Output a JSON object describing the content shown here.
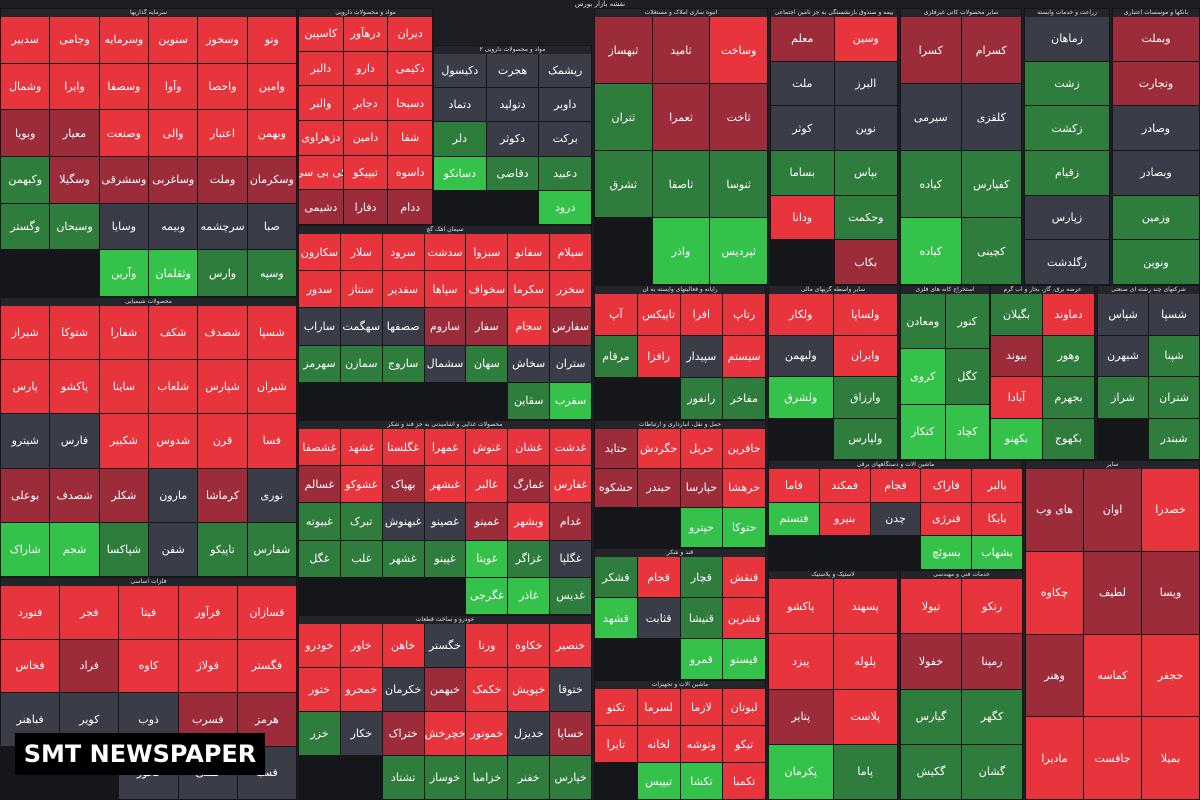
{
  "header": {
    "title": "نقشه بازار بورس"
  },
  "watermark": "SMT NEWSPAPER",
  "sectors": [
    {
      "name": "سرمایه گذاریها",
      "tiles": [
        "وتو",
        "وسخوز",
        "سنوین",
        "وسرمایه",
        "وجامی",
        "سدبیر",
        "وامین",
        "واحصا",
        "وآوا",
        "وسصفا",
        "وایرا",
        "وشمال",
        "وبهمن",
        "اعتبار",
        "والی",
        "وصنعت",
        "معیار",
        "وبویا",
        "وسکرمان",
        "وملت",
        "وساغربی",
        "وسشرقی",
        "وسگیلا",
        "وکبهمن",
        "صبا",
        "سرچشمه",
        "وبیمه",
        "وسایا",
        "وسبحان",
        "وگستر",
        "وسپه",
        "وارس",
        "وثقلمان",
        "وآرین"
      ],
      "colors": [
        "#e8343c",
        "#e8343c",
        "#e8343c",
        "#e8343c",
        "#e8343c",
        "#e8343c",
        "#e8343c",
        "#e8343c",
        "#e8343c",
        "#e8343c",
        "#e8343c",
        "#e8343c",
        "#e8343c",
        "#e8343c",
        "#e8343c",
        "#e8343c",
        "#9c2c3a",
        "#9c2c3a",
        "#9c2c3a",
        "#9c2c3a",
        "#9c2c3a",
        "#9c2c3a",
        "#9c2c3a",
        "#2f7d3c",
        "#3a3d48",
        "#3a3d48",
        "#3a3d48",
        "#3a3d48",
        "#2f7d3c",
        "#2f7d3c",
        "#2f7d3c",
        "#2f7d3c",
        "#35c24a",
        "#35c24a"
      ]
    },
    {
      "name": "مواد و محصولات دارویی",
      "tiles": [
        "دیران",
        "درهآور",
        "کاسپین",
        "دکیمی",
        "دارو",
        "دالبر",
        "دسبحا",
        "دجابر",
        "والبر",
        "شفا",
        "دامین",
        "دزهراوی",
        "داسوه",
        "تیپیکو",
        "کی بی سی",
        "ددام",
        "دفارا",
        "دشیمی"
      ],
      "colors": [
        "#e8343c",
        "#e8343c",
        "#e8343c",
        "#e8343c",
        "#e8343c",
        "#e8343c",
        "#e8343c",
        "#e8343c",
        "#e8343c",
        "#e8343c",
        "#e8343c",
        "#e8343c",
        "#e8343c",
        "#e8343c",
        "#e8343c",
        "#9c2c3a",
        "#9c2c3a",
        "#9c2c3a"
      ]
    },
    {
      "name": "مواد و محصولات دارویی ۲",
      "tiles": [
        "ریشمک",
        "هجرت",
        "دکیسول",
        "داوبر",
        "دتوليد",
        "دتماد",
        "برکت",
        "دکوثر",
        "دلر",
        "دعبید",
        "دقاضی",
        "دسانکو",
        "درود"
      ],
      "colors": [
        "#3a3d48",
        "#3a3d48",
        "#3a3d48",
        "#3a3d48",
        "#3a3d48",
        "#3a3d48",
        "#3a3d48",
        "#3a3d48",
        "#2f7d3c",
        "#2f7d3c",
        "#2f7d3c",
        "#35c24a",
        "#35c24a"
      ]
    },
    {
      "name": "محصولات شیمیایی",
      "tiles": [
        "شسپا",
        "شصدف",
        "شکف",
        "شفارا",
        "شتوکا",
        "شیراز",
        "شیران",
        "شپارس",
        "شلعاب",
        "ساینا",
        "پاکشو",
        "پارس",
        "فسا",
        "قرن",
        "شدوس",
        "شکبیر",
        "فارس",
        "شیترو",
        "نوری",
        "کرماشا",
        "مارون",
        "شکلر",
        "شصدف",
        "بوعلی",
        "شفارس",
        "تاپیکو",
        "شفن",
        "شپاکسا",
        "شجم",
        "شاراک"
      ],
      "colors": [
        "#e8343c",
        "#e8343c",
        "#e8343c",
        "#e8343c",
        "#e8343c",
        "#e8343c",
        "#e8343c",
        "#e8343c",
        "#e8343c",
        "#e8343c",
        "#e8343c",
        "#e8343c",
        "#e8343c",
        "#e8343c",
        "#e8343c",
        "#e8343c",
        "#3a3d48",
        "#3a3d48",
        "#3a3d48",
        "#9c2c3a",
        "#3a3d48",
        "#9c2c3a",
        "#9c2c3a",
        "#9c2c3a",
        "#2f7d3c",
        "#2f7d3c",
        "#3a3d48",
        "#2f7d3c",
        "#35c24a",
        "#35c24a"
      ]
    },
    {
      "name": "فلزات اساسی",
      "tiles": [
        "فسازان",
        "فرآور",
        "فیتا",
        "فجر",
        "فنورد",
        "فگستر",
        "فولاژ",
        "کاوه",
        "فراد",
        "فخاس",
        "هرمز",
        "فسرب",
        "ذوب",
        "کویر",
        "فباهنر",
        "فسبا",
        "فملی",
        "فخوز"
      ],
      "colors": [
        "#e8343c",
        "#e8343c",
        "#e8343c",
        "#e8343c",
        "#e8343c",
        "#e8343c",
        "#e8343c",
        "#e8343c",
        "#9c2c3a",
        "#e8343c",
        "#9c2c3a",
        "#9c2c3a",
        "#3a3d48",
        "#3a3d48",
        "#3a3d48",
        "#3a3d48",
        "#3a3d48",
        "#3a3d48"
      ]
    },
    {
      "name": "سیمان آهک گچ",
      "tiles": [
        "سیلام",
        "سفانو",
        "سبزوا",
        "سدشت",
        "سرود",
        "سلار",
        "سکارون",
        "سخزر",
        "سکرما",
        "سخواف",
        "سپاها",
        "سفدیر",
        "سنتاز",
        "سدور",
        "سفارس",
        "سجام",
        "سفار",
        "ساروم",
        "صصفها",
        "سهگمت",
        "ساراب",
        "ستران",
        "سخاش",
        "سهان",
        "سشمال",
        "ساروج",
        "سمازن",
        "سهرمز",
        "سفرب",
        "سقاین"
      ],
      "colors": [
        "#e8343c",
        "#e8343c",
        "#e8343c",
        "#e8343c",
        "#e8343c",
        "#e8343c",
        "#e8343c",
        "#e8343c",
        "#e8343c",
        "#e8343c",
        "#e8343c",
        "#e8343c",
        "#e8343c",
        "#e8343c",
        "#9c2c3a",
        "#e8343c",
        "#9c2c3a",
        "#9c2c3a",
        "#3a3d48",
        "#3a3d48",
        "#3a3d48",
        "#3a3d48",
        "#3a3d48",
        "#2f7d3c",
        "#3a3d48",
        "#2f7d3c",
        "#2f7d3c",
        "#2f7d3c",
        "#35c24a",
        "#2f7d3c"
      ]
    },
    {
      "name": "محصولات غذایی و آشامیدنی به جز قند و شکر",
      "tiles": [
        "غدشت",
        "غشان",
        "غنوش",
        "غمهرا",
        "غگلستا",
        "غشهد",
        "غشصفا",
        "غفارس",
        "غمارگ",
        "غالبر",
        "غبشهر",
        "بهپاک",
        "غشوکو",
        "غسالم",
        "غدام",
        "وبشهر",
        "غمینو",
        "غصینو",
        "غبهنوش",
        "تبرک",
        "غبیوته",
        "غگلپا",
        "غزاگر",
        "غویتا",
        "غپینو",
        "غشهر",
        "غلب",
        "غگل",
        "غدیس",
        "غاذر",
        "غگرجی"
      ],
      "colors": [
        "#e8343c",
        "#e8343c",
        "#e8343c",
        "#e8343c",
        "#e8343c",
        "#e8343c",
        "#e8343c",
        "#e8343c",
        "#9c2c3a",
        "#e8343c",
        "#e8343c",
        "#9c2c3a",
        "#e8343c",
        "#9c2c3a",
        "#9c2c3a",
        "#e8343c",
        "#9c2c3a",
        "#3a3d48",
        "#3a3d48",
        "#2f7d3c",
        "#2f7d3c",
        "#3a3d48",
        "#2f7d3c",
        "#35c24a",
        "#2f7d3c",
        "#2f7d3c",
        "#2f7d3c",
        "#2f7d3c",
        "#2f7d3c",
        "#35c24a",
        "#35c24a"
      ]
    },
    {
      "name": "خودرو و ساخت قطعات",
      "tiles": [
        "خنصير",
        "خکاوه",
        "ورنا",
        "خگستر",
        "خاهن",
        "خاور",
        "خودرو",
        "ختوقا",
        "خپویش",
        "خکمک",
        "خبهمن",
        "خکرمان",
        "خمحرو",
        "ختور",
        "خساپا",
        "خدیزل",
        "خموتور",
        "خچرخش",
        "ختراک",
        "خکار",
        "خزر",
        "خپارس",
        "خفنر",
        "خزامیا",
        "خوساز",
        "تشتاد"
      ],
      "colors": [
        "#e8343c",
        "#e8343c",
        "#e8343c",
        "#3a3d48",
        "#e8343c",
        "#e8343c",
        "#e8343c",
        "#3a3d48",
        "#e8343c",
        "#e8343c",
        "#9c2c3a",
        "#3a3d48",
        "#e8343c",
        "#e8343c",
        "#9c2c3a",
        "#3a3d48",
        "#e8343c",
        "#e8343c",
        "#9c2c3a",
        "#3a3d48",
        "#2f7d3c",
        "#2f7d3c",
        "#2f7d3c",
        "#2f7d3c",
        "#2f7d3c",
        "#2f7d3c"
      ]
    },
    {
      "name": "انبوه سازی املاک و مستغلات",
      "tiles": [
        "وساخت",
        "ثامید",
        "ثبهساز",
        "ثاخت",
        "ثعمرا",
        "ثتران",
        "ثنوسا",
        "ثاصفا",
        "ثشرق",
        "ثپردیس",
        "واذر"
      ],
      "colors": [
        "#e8343c",
        "#9c2c3a",
        "#9c2c3a",
        "#9c2c3a",
        "#9c2c3a",
        "#2f7d3c",
        "#2f7d3c",
        "#2f7d3c",
        "#2f7d3c",
        "#35c24a",
        "#35c24a"
      ]
    },
    {
      "name": "بیمه و صندوق بازنشستگی به جز تامین اجتماعی",
      "tiles": [
        "وسین",
        "معلم",
        "البرز",
        "ملت",
        "نوین",
        "کوثر",
        "بپاس",
        "بساما",
        "وحکمت",
        "ودانا",
        "بکاب"
      ],
      "colors": [
        "#e8343c",
        "#9c2c3a",
        "#3a3d48",
        "#3a3d48",
        "#3a3d48",
        "#3a3d48",
        "#2f7d3c",
        "#2f7d3c",
        "#2f7d3c",
        "#e8343c",
        "#9c2c3a"
      ]
    },
    {
      "name": "سایر محصولات کانی غیرفلزی",
      "tiles": [
        "کسرام",
        "کسرا",
        "کلقزی",
        "سیرمی",
        "کفپارس",
        "کیاده",
        "کچینی",
        "کباده"
      ],
      "colors": [
        "#9c2c3a",
        "#9c2c3a",
        "#3a3d48",
        "#3a3d48",
        "#2f7d3c",
        "#2f7d3c",
        "#2f7d3c",
        "#35c24a"
      ]
    },
    {
      "name": "زراعت و خدمات وابسته",
      "tiles": [
        "زماهان",
        "زشت",
        "زکشت",
        "زقیام",
        "زپارس",
        "زگلدشت"
      ],
      "colors": [
        "#3a3d48",
        "#2f7d3c",
        "#2f7d3c",
        "#2f7d3c",
        "#3a3d48",
        "#3a3d48"
      ]
    },
    {
      "name": "بانکها و موسسات اعتباری",
      "tiles": [
        "وبملت",
        "وتجارت",
        "وصادر",
        "وبصادر",
        "وزمین",
        "ونوین"
      ],
      "colors": [
        "#9c2c3a",
        "#9c2c3a",
        "#3a3d48",
        "#3a3d48",
        "#2f7d3c",
        "#2f7d3c"
      ]
    },
    {
      "name": "رایانه و فعالیتهای وابسته به آن",
      "tiles": [
        "رتاپ",
        "افرا",
        "تاپیکس",
        "آپ",
        "سیستم",
        "سپیدار",
        "رافزا",
        "مرقام",
        "مفاخر",
        "رانفور"
      ],
      "colors": [
        "#e8343c",
        "#e8343c",
        "#e8343c",
        "#e8343c",
        "#e8343c",
        "#3a3d48",
        "#e8343c",
        "#2f7d3c",
        "#2f7d3c",
        "#2f7d3c"
      ]
    },
    {
      "name": "حمل و نقل، انبارداری و ارتباطات",
      "tiles": [
        "حافرین",
        "حریل",
        "حگردش",
        "حتاید",
        "حرهشا",
        "حپارسا",
        "حبندر",
        "حشکوه",
        "حتوکا",
        "حپترو"
      ],
      "colors": [
        "#e8343c",
        "#e8343c",
        "#e8343c",
        "#9c2c3a",
        "#e8343c",
        "#9c2c3a",
        "#9c2c3a",
        "#9c2c3a",
        "#35c24a",
        "#35c24a"
      ]
    },
    {
      "name": "قند و شکر",
      "tiles": [
        "قنقش",
        "قچار",
        "قجام",
        "قشکر",
        "قشرین",
        "قنیشا",
        "قثابت",
        "قشهد",
        "قیستو",
        "قمرو"
      ],
      "colors": [
        "#e8343c",
        "#2f7d3c",
        "#e8343c",
        "#2f7d3c",
        "#e8343c",
        "#2f7d3c",
        "#3a3d48",
        "#35c24a",
        "#35c24a",
        "#35c24a"
      ]
    },
    {
      "name": "ماشین آلات و تجهیزات",
      "tiles": [
        "لبوتان",
        "لازما",
        "لسرما",
        "تکنو",
        "تیکو",
        "وتوشه",
        "لخانه",
        "تایرا",
        "تکمبا",
        "تکشا",
        "تیپیس"
      ],
      "colors": [
        "#e8343c",
        "#e8343c",
        "#e8343c",
        "#e8343c",
        "#e8343c",
        "#e8343c",
        "#e8343c",
        "#e8343c",
        "#e8343c",
        "#35c24a",
        "#35c24a"
      ]
    },
    {
      "name": "سایر واسطه گریهای مالی",
      "tiles": [
        "ولساپا",
        "ولکار",
        "وایران",
        "ولبهمن",
        "وارزاق",
        "ولشرق",
        "ولپارس"
      ],
      "colors": [
        "#e8343c",
        "#e8343c",
        "#e8343c",
        "#3a3d48",
        "#2f7d3c",
        "#35c24a",
        "#2f7d3c"
      ]
    },
    {
      "name": "استخراج کانه های فلزی",
      "tiles": [
        "کنور",
        "ومعادن",
        "کگل",
        "کروی",
        "کچاد",
        "کتکار"
      ],
      "colors": [
        "#2f7d3c",
        "#2f7d3c",
        "#2f7d3c",
        "#35c24a",
        "#35c24a",
        "#35c24a"
      ]
    },
    {
      "name": "عرضه برق، گاز، بخار و آب گرم",
      "tiles": [
        "دماوند",
        "بگیلان",
        "وهور",
        "بیوند",
        "بجهرم",
        "آبادا",
        "بکهوج",
        "بکهنو"
      ],
      "colors": [
        "#e8343c",
        "#2f7d3c",
        "#2f7d3c",
        "#9c2c3a",
        "#2f7d3c",
        "#e8343c",
        "#2f7d3c",
        "#35c24a"
      ]
    },
    {
      "name": "شرکتهای چند رشته ای صنعتی",
      "tiles": [
        "شسپا",
        "شپاس",
        "شپنا",
        "شبهرن",
        "شتران",
        "شراز",
        "شبندر"
      ],
      "colors": [
        "#3a3d48",
        "#3a3d48",
        "#2f7d3c",
        "#3a3d48",
        "#2f7d3c",
        "#2f7d3c",
        "#2f7d3c"
      ]
    },
    {
      "name": "ماشین آلات و دستگاههای برقی",
      "tiles": [
        "بالبر",
        "فاراک",
        "فجام",
        "فمکند",
        "فاما",
        "بایکا",
        "فنرژی",
        "چدن",
        "بنیرو",
        "فتستم",
        "بشهاب",
        "بسوئچ"
      ],
      "colors": [
        "#e8343c",
        "#e8343c",
        "#e8343c",
        "#e8343c",
        "#e8343c",
        "#e8343c",
        "#e8343c",
        "#3a3d48",
        "#e8343c",
        "#35c24a",
        "#35c24a",
        "#35c24a"
      ]
    },
    {
      "name": "خدمات فنی و مهندسی",
      "tiles": [
        "رتکو",
        "تیولا",
        "رمپنا",
        "خفولا",
        "کگهر",
        "گیارس",
        "گشان",
        "گکیش"
      ],
      "colors": [
        "#e8343c",
        "#e8343c",
        "#9c2c3a",
        "#9c2c3a",
        "#2f7d3c",
        "#2f7d3c",
        "#2f7d3c",
        "#2f7d3c"
      ]
    },
    {
      "name": "لاستیک و پلاستیک",
      "tiles": [
        "پسهند",
        "پاکشو",
        "پلوله",
        "پیزد",
        "پلاست",
        "پتایر",
        "پاما",
        "پکرمان"
      ],
      "colors": [
        "#e8343c",
        "#e8343c",
        "#e8343c",
        "#e8343c",
        "#e8343c",
        "#9c2c3a",
        "#2f7d3c",
        "#35c24a"
      ]
    },
    {
      "name": "سایر",
      "tiles": [
        "خصدرا",
        "اوان",
        "های وب",
        "ویسا",
        "لطیف",
        "چکاوه",
        "حجفر",
        "کماسه",
        "وهنر",
        "بمیلا",
        "جافست",
        "مادیرا"
      ],
      "colors": [
        "#e8343c",
        "#9c2c3a",
        "#9c2c3a",
        "#9c2c3a",
        "#9c2c3a",
        "#e8343c",
        "#e8343c",
        "#e8343c",
        "#9c2c3a",
        "#e8343c",
        "#e8343c",
        "#e8343c"
      ]
    }
  ]
}
